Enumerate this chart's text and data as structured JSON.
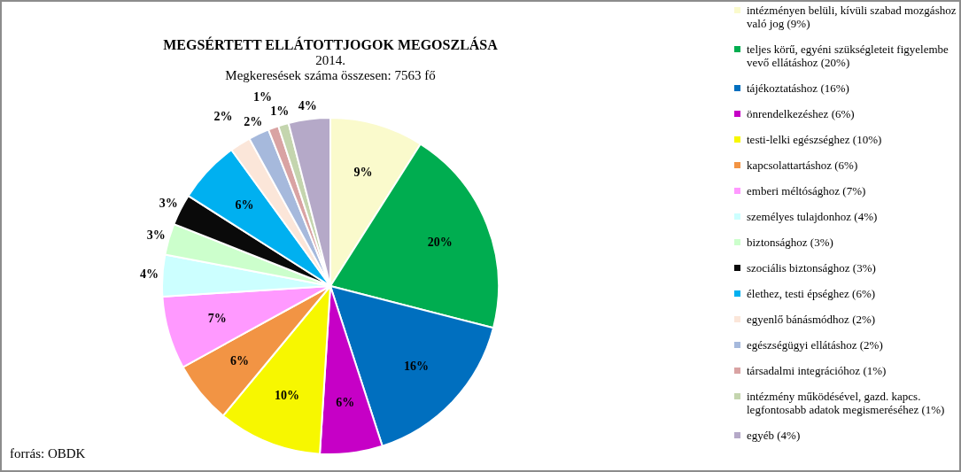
{
  "chart_data": {
    "type": "pie",
    "title": "MEGSÉRTETT ELLÁTOTTJOGOK MEGOSZLÁSA",
    "subtitle": "2014.\nMegkeresések száma összesen: 7563 fő",
    "categories": [
      "intézményen belüli, kívüli szabad mozgáshoz való jog (9%)",
      "teljes körű, egyéni szükségleteit figyelembe vevő ellátáshoz (20%)",
      "tájékoztatáshoz (16%)",
      "önrendelkezéshez (6%)",
      "testi-lelki egészséghez (10%)",
      "kapcsolattartáshoz (6%)",
      "emberi méltósághoz (7%)",
      "személyes tulajdonhoz (4%)",
      "biztonsághoz (3%)",
      "szociális biztonsághoz (3%)",
      "élethez, testi épséghez (6%)",
      "egyenlő bánásmódhoz (2%)",
      "egészségügyi ellátáshoz (2%)",
      "társadalmi integrációhoz (1%)",
      "intézmény működésével, gazd. kapcs. legfontosabb adatok megismeréséhez (1%)",
      "egyéb (4%)"
    ],
    "values": [
      9,
      20,
      16,
      6,
      10,
      6,
      7,
      4,
      3,
      3,
      6,
      2,
      2,
      1,
      1,
      4
    ],
    "value_labels": [
      "9%",
      "20%",
      "16%",
      "6%",
      "10%",
      "6%",
      "7%",
      "4%",
      "3%",
      "3%",
      "6%",
      "2%",
      "2%",
      "1%",
      "1%",
      "4%"
    ],
    "colors": [
      "#fafacc",
      "#00ad50",
      "#006fbf",
      "#c600c6",
      "#f7f700",
      "#f29444",
      "#ff99ff",
      "#ccffff",
      "#ccffcc",
      "#0a0a0a",
      "#00b0f0",
      "#fbe6d9",
      "#a6b9dc",
      "#d9a3a3",
      "#c4d5ae",
      "#b5a9c8"
    ],
    "legend": "right",
    "annotations": [
      "forrás: OBDK"
    ]
  }
}
